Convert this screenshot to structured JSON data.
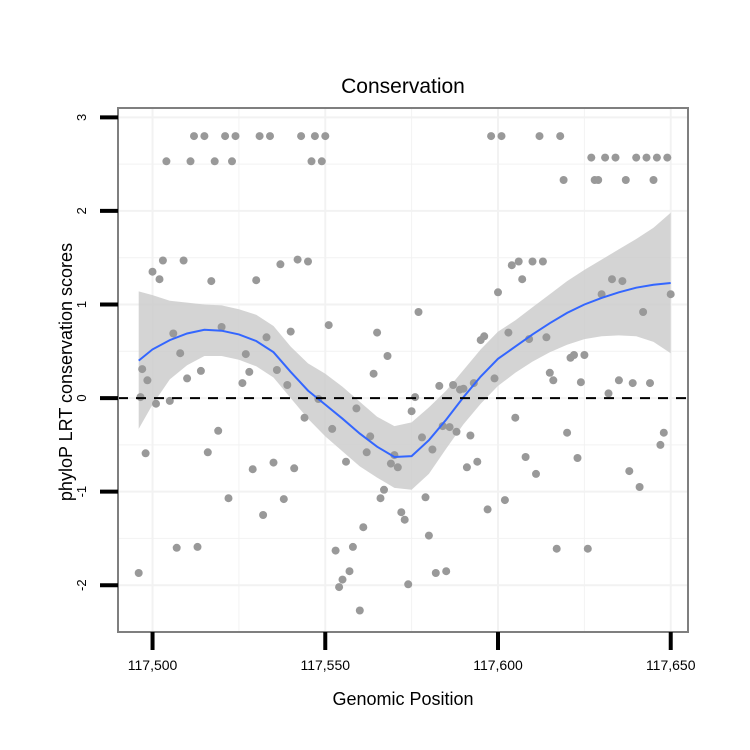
{
  "chart_data": {
    "type": "scatter",
    "title": "Conservation",
    "xlabel": "Genomic Position",
    "ylabel": "phyloP LRT conservation scores",
    "xlim": [
      117490,
      117655
    ],
    "ylim": [
      -2.5,
      3.1
    ],
    "x_ticks": [
      117500,
      117550,
      117600,
      117650
    ],
    "x_tick_labels": [
      "117,500",
      "117,550",
      "117,600",
      "117,650"
    ],
    "y_ticks": [
      -2,
      -1,
      0,
      1,
      2,
      3
    ],
    "y_tick_labels": [
      "-2",
      "-1",
      "0",
      "1",
      "2",
      "3"
    ],
    "grid": true,
    "reference_line": {
      "y": 0,
      "style": "dashed"
    },
    "colors": {
      "points": "#999999",
      "smooth": "#3366ff",
      "ribbon": "#cccccc",
      "frame": "#7f7f7f",
      "grid": "#f2f2f2"
    },
    "points": [
      [
        117496,
        -1.87
      ],
      [
        117496.5,
        0.01
      ],
      [
        117497,
        0.31
      ],
      [
        117498,
        -0.59
      ],
      [
        117498.5,
        0.19
      ],
      [
        117500,
        1.35
      ],
      [
        117501,
        -0.06
      ],
      [
        117502,
        1.27
      ],
      [
        117503,
        1.47
      ],
      [
        117504,
        2.53
      ],
      [
        117505,
        -0.03
      ],
      [
        117506,
        0.69
      ],
      [
        117507,
        -1.6
      ],
      [
        117508,
        0.48
      ],
      [
        117509,
        1.47
      ],
      [
        117510,
        0.21
      ],
      [
        117511,
        2.53
      ],
      [
        117512,
        2.8
      ],
      [
        117513,
        -1.59
      ],
      [
        117514,
        0.29
      ],
      [
        117515,
        2.8
      ],
      [
        117516,
        -0.58
      ],
      [
        117517,
        1.25
      ],
      [
        117518,
        2.53
      ],
      [
        117519,
        -0.35
      ],
      [
        117520,
        0.76
      ],
      [
        117521,
        2.8
      ],
      [
        117522,
        -1.07
      ],
      [
        117523,
        2.53
      ],
      [
        117524,
        2.8
      ],
      [
        117526,
        0.16
      ],
      [
        117527,
        0.47
      ],
      [
        117528,
        0.28
      ],
      [
        117529,
        -0.76
      ],
      [
        117530,
        1.26
      ],
      [
        117531,
        2.8
      ],
      [
        117532,
        -1.25
      ],
      [
        117533,
        0.65
      ],
      [
        117534,
        2.8
      ],
      [
        117535,
        -0.69
      ],
      [
        117536,
        0.3
      ],
      [
        117537,
        1.43
      ],
      [
        117538,
        -1.08
      ],
      [
        117539,
        0.14
      ],
      [
        117540,
        0.71
      ],
      [
        117541,
        -0.75
      ],
      [
        117542,
        1.48
      ],
      [
        117543,
        2.8
      ],
      [
        117544,
        -0.21
      ],
      [
        117545,
        1.46
      ],
      [
        117546,
        2.53
      ],
      [
        117547,
        2.8
      ],
      [
        117548,
        -0.01
      ],
      [
        117549,
        2.53
      ],
      [
        117550,
        2.8
      ],
      [
        117551,
        0.78
      ],
      [
        117552,
        -0.33
      ],
      [
        117553,
        -1.63
      ],
      [
        117554,
        -2.02
      ],
      [
        117555,
        -1.94
      ],
      [
        117556,
        -0.68
      ],
      [
        117557,
        -1.85
      ],
      [
        117558,
        -1.59
      ],
      [
        117559,
        -0.11
      ],
      [
        117560,
        -2.27
      ],
      [
        117561,
        -1.38
      ],
      [
        117562,
        -0.58
      ],
      [
        117563,
        -0.41
      ],
      [
        117564,
        0.26
      ],
      [
        117565,
        0.7
      ],
      [
        117566,
        -1.07
      ],
      [
        117567,
        -0.98
      ],
      [
        117568,
        0.45
      ],
      [
        117569,
        -0.7
      ],
      [
        117570,
        -0.61
      ],
      [
        117571,
        -0.74
      ],
      [
        117572,
        -1.22
      ],
      [
        117573,
        -1.3
      ],
      [
        117574,
        -1.99
      ],
      [
        117575,
        -0.14
      ],
      [
        117576,
        0.01
      ],
      [
        117577,
        0.92
      ],
      [
        117578,
        -0.42
      ],
      [
        117579,
        -1.06
      ],
      [
        117580,
        -1.47
      ],
      [
        117581,
        -0.55
      ],
      [
        117582,
        -1.87
      ],
      [
        117583,
        0.13
      ],
      [
        117584,
        -0.3
      ],
      [
        117585,
        -1.85
      ],
      [
        117586,
        -0.31
      ],
      [
        117587,
        0.14
      ],
      [
        117588,
        -0.36
      ],
      [
        117589,
        0.09
      ],
      [
        117590,
        0.1
      ],
      [
        117591,
        -0.74
      ],
      [
        117592,
        -0.4
      ],
      [
        117593,
        0.16
      ],
      [
        117594,
        -0.68
      ],
      [
        117595,
        0.62
      ],
      [
        117596,
        0.66
      ],
      [
        117597,
        -1.19
      ],
      [
        117598,
        2.8
      ],
      [
        117599,
        0.21
      ],
      [
        117600,
        1.13
      ],
      [
        117601,
        2.8
      ],
      [
        117602,
        -1.09
      ],
      [
        117603,
        0.7
      ],
      [
        117604,
        1.42
      ],
      [
        117605,
        -0.21
      ],
      [
        117606,
        1.46
      ],
      [
        117607,
        1.27
      ],
      [
        117608,
        -0.63
      ],
      [
        117609,
        0.63
      ],
      [
        117610,
        1.46
      ],
      [
        117611,
        -0.81
      ],
      [
        117612,
        2.8
      ],
      [
        117613,
        1.46
      ],
      [
        117614,
        0.65
      ],
      [
        117615,
        0.27
      ],
      [
        117616,
        0.19
      ],
      [
        117617,
        -1.61
      ],
      [
        117618,
        2.8
      ],
      [
        117619,
        2.33
      ],
      [
        117620,
        -0.37
      ],
      [
        117621,
        0.43
      ],
      [
        117622,
        0.46
      ],
      [
        117623,
        -0.64
      ],
      [
        117624,
        0.17
      ],
      [
        117625,
        0.46
      ],
      [
        117626,
        -1.61
      ],
      [
        117627,
        2.57
      ],
      [
        117628,
        2.33
      ],
      [
        117629,
        2.33
      ],
      [
        117630,
        1.11
      ],
      [
        117631,
        2.57
      ],
      [
        117632,
        0.05
      ],
      [
        117633,
        1.27
      ],
      [
        117634,
        2.57
      ],
      [
        117635,
        0.19
      ],
      [
        117636,
        1.25
      ],
      [
        117637,
        2.33
      ],
      [
        117638,
        -0.78
      ],
      [
        117639,
        0.16
      ],
      [
        117640,
        2.57
      ],
      [
        117641,
        -0.95
      ],
      [
        117642,
        0.92
      ],
      [
        117643,
        2.57
      ],
      [
        117644,
        0.16
      ],
      [
        117645,
        2.33
      ],
      [
        117646,
        2.57
      ],
      [
        117647,
        -0.5
      ],
      [
        117648,
        -0.37
      ],
      [
        117649,
        2.57
      ],
      [
        117650,
        1.11
      ]
    ],
    "smooth": {
      "x": [
        117496,
        117500,
        117505,
        117510,
        117515,
        117520,
        117525,
        117530,
        117535,
        117540,
        117545,
        117550,
        117555,
        117560,
        117565,
        117570,
        117575,
        117580,
        117585,
        117590,
        117595,
        117600,
        117605,
        117610,
        117615,
        117620,
        117625,
        117630,
        117635,
        117640,
        117645,
        117650
      ],
      "y": [
        0.4,
        0.52,
        0.62,
        0.69,
        0.73,
        0.72,
        0.68,
        0.61,
        0.49,
        0.28,
        0.08,
        -0.07,
        -0.22,
        -0.38,
        -0.52,
        -0.63,
        -0.62,
        -0.45,
        -0.23,
        0.01,
        0.23,
        0.42,
        0.55,
        0.68,
        0.8,
        0.91,
        1.0,
        1.07,
        1.13,
        1.18,
        1.21,
        1.23
      ],
      "lower": [
        -0.33,
        -0.07,
        0.2,
        0.35,
        0.45,
        0.45,
        0.41,
        0.34,
        0.22,
        0.0,
        -0.22,
        -0.41,
        -0.57,
        -0.73,
        -0.85,
        -0.96,
        -0.98,
        -0.81,
        -0.54,
        -0.28,
        -0.06,
        0.13,
        0.27,
        0.39,
        0.49,
        0.57,
        0.63,
        0.66,
        0.67,
        0.66,
        0.6,
        0.48
      ],
      "upper": [
        1.14,
        1.1,
        1.04,
        1.02,
        1.0,
        0.99,
        0.95,
        0.89,
        0.77,
        0.55,
        0.37,
        0.26,
        0.12,
        -0.04,
        -0.2,
        -0.3,
        -0.26,
        -0.1,
        0.08,
        0.3,
        0.52,
        0.71,
        0.83,
        0.97,
        1.11,
        1.25,
        1.37,
        1.48,
        1.59,
        1.7,
        1.82,
        1.98
      ]
    }
  }
}
